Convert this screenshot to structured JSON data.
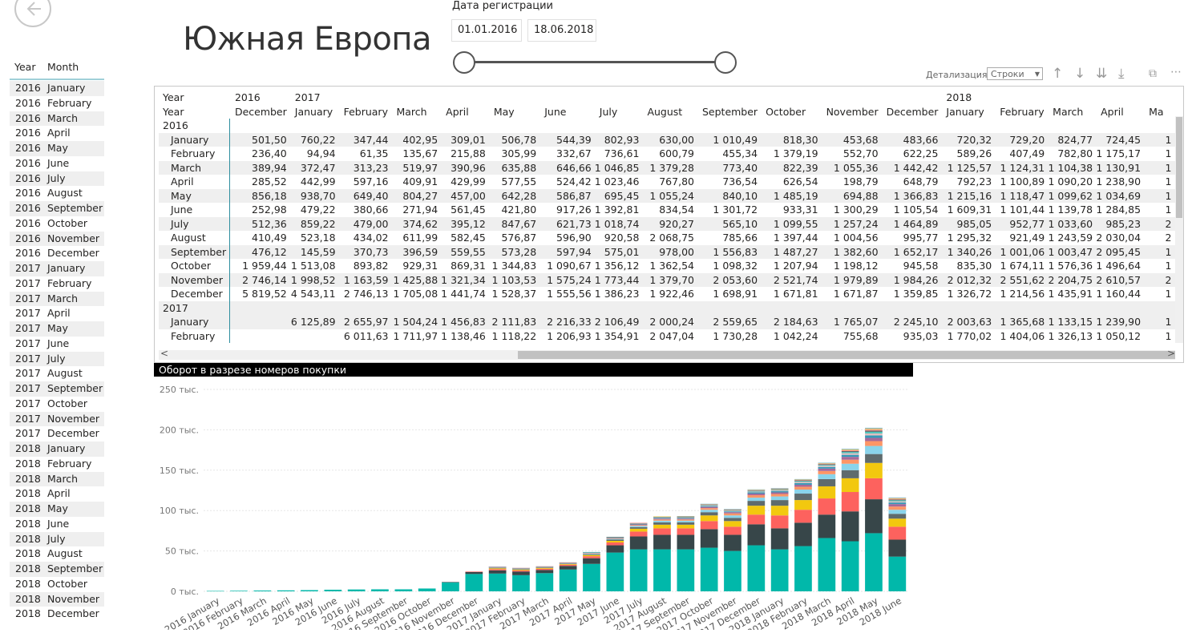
{
  "page": {
    "title": "Южная Европа"
  },
  "slicer": {
    "label": "Дата регистрации",
    "from": "01.01.2016",
    "to": "18.06.2018"
  },
  "left_list": {
    "headers": {
      "year": "Year",
      "month": "Month"
    },
    "rows": [
      [
        "2016",
        "January"
      ],
      [
        "2016",
        "February"
      ],
      [
        "2016",
        "March"
      ],
      [
        "2016",
        "April"
      ],
      [
        "2016",
        "May"
      ],
      [
        "2016",
        "June"
      ],
      [
        "2016",
        "July"
      ],
      [
        "2016",
        "August"
      ],
      [
        "2016",
        "September"
      ],
      [
        "2016",
        "October"
      ],
      [
        "2016",
        "November"
      ],
      [
        "2016",
        "December"
      ],
      [
        "2017",
        "January"
      ],
      [
        "2017",
        "February"
      ],
      [
        "2017",
        "March"
      ],
      [
        "2017",
        "April"
      ],
      [
        "2017",
        "May"
      ],
      [
        "2017",
        "June"
      ],
      [
        "2017",
        "July"
      ],
      [
        "2017",
        "August"
      ],
      [
        "2017",
        "September"
      ],
      [
        "2017",
        "October"
      ],
      [
        "2017",
        "November"
      ],
      [
        "2017",
        "December"
      ],
      [
        "2018",
        "January"
      ],
      [
        "2018",
        "February"
      ],
      [
        "2018",
        "March"
      ],
      [
        "2018",
        "April"
      ],
      [
        "2018",
        "May"
      ],
      [
        "2018",
        "June"
      ],
      [
        "2018",
        "July"
      ],
      [
        "2018",
        "August"
      ],
      [
        "2018",
        "September"
      ],
      [
        "2018",
        "October"
      ],
      [
        "2018",
        "November"
      ],
      [
        "2018",
        "December"
      ]
    ]
  },
  "toolbar": {
    "detail_label": "Детализация",
    "detail_value": "Строки"
  },
  "matrix": {
    "corner": [
      "Year",
      "Year"
    ],
    "year_headers": [
      [
        "2016",
        0
      ],
      [
        "2017",
        1
      ],
      [
        "2018",
        13
      ]
    ],
    "columns": [
      "December",
      "January",
      "February",
      "March",
      "April",
      "May",
      "June",
      "July",
      "August",
      "September",
      "October",
      "November",
      "December",
      "January",
      "February",
      "March",
      "April",
      "Ma"
    ],
    "groups": [
      {
        "year": "2016",
        "rows": [
          {
            "label": "January",
            "values": [
              "501,50",
              "760,22",
              "347,44",
              "402,95",
              "309,01",
              "506,78",
              "544,39",
              "802,93",
              "630,00",
              "1 010,49",
              "818,30",
              "453,68",
              "483,66",
              "720,32",
              "729,20",
              "824,77",
              "724,45",
              "1"
            ]
          },
          {
            "label": "February",
            "values": [
              "236,40",
              "94,94",
              "61,35",
              "135,67",
              "215,88",
              "305,99",
              "332,67",
              "736,61",
              "600,79",
              "455,34",
              "1 379,19",
              "552,70",
              "622,25",
              "589,26",
              "407,49",
              "782,80",
              "1 175,17",
              "1"
            ]
          },
          {
            "label": "March",
            "values": [
              "389,94",
              "372,47",
              "313,23",
              "519,97",
              "390,96",
              "635,88",
              "646,66",
              "1 046,85",
              "1 379,28",
              "773,40",
              "822,39",
              "1 055,36",
              "1 442,42",
              "1 125,57",
              "1 124,31",
              "1 104,38",
              "1 130,91",
              "1"
            ]
          },
          {
            "label": "April",
            "values": [
              "285,52",
              "442,99",
              "597,16",
              "409,91",
              "429,99",
              "577,55",
              "524,42",
              "1 023,46",
              "767,80",
              "736,54",
              "626,54",
              "198,79",
              "648,79",
              "792,23",
              "1 100,89",
              "1 090,20",
              "1 238,90",
              "1"
            ]
          },
          {
            "label": "May",
            "values": [
              "856,18",
              "938,70",
              "649,40",
              "804,27",
              "457,00",
              "642,28",
              "586,87",
              "695,45",
              "1 055,24",
              "840,10",
              "1 485,19",
              "694,88",
              "1 366,83",
              "1 215,16",
              "1 118,47",
              "1 099,62",
              "1 034,69",
              "1"
            ]
          },
          {
            "label": "June",
            "values": [
              "252,98",
              "479,22",
              "380,66",
              "271,94",
              "561,45",
              "421,80",
              "917,26",
              "1 392,81",
              "834,54",
              "1 301,72",
              "933,31",
              "1 300,29",
              "1 105,54",
              "1 609,31",
              "1 101,44",
              "1 139,78",
              "1 284,85",
              "1"
            ]
          },
          {
            "label": "July",
            "values": [
              "512,36",
              "859,22",
              "479,00",
              "374,62",
              "395,12",
              "847,67",
              "621,73",
              "1 018,74",
              "920,27",
              "565,10",
              "1 099,55",
              "1 257,24",
              "1 464,89",
              "985,05",
              "952,77",
              "1 033,60",
              "985,23",
              "2"
            ]
          },
          {
            "label": "August",
            "values": [
              "410,49",
              "523,18",
              "434,02",
              "611,99",
              "582,45",
              "576,87",
              "596,90",
              "920,58",
              "2 068,75",
              "785,66",
              "1 397,44",
              "1 004,56",
              "995,77",
              "1 295,32",
              "921,49",
              "1 243,59",
              "2 030,04",
              "2"
            ]
          },
          {
            "label": "September",
            "values": [
              "476,12",
              "145,59",
              "370,73",
              "396,59",
              "559,55",
              "573,28",
              "597,94",
              "575,01",
              "978,00",
              "1 556,83",
              "1 487,27",
              "1 382,60",
              "1 652,17",
              "1 340,26",
              "1 001,06",
              "1 003,47",
              "2 095,45",
              "1"
            ]
          },
          {
            "label": "October",
            "values": [
              "1 959,44",
              "1 513,08",
              "893,82",
              "929,31",
              "869,31",
              "1 344,83",
              "1 090,67",
              "1 356,12",
              "1 362,54",
              "1 098,32",
              "1 207,94",
              "1 198,12",
              "945,58",
              "835,30",
              "1 674,11",
              "1 576,36",
              "1 496,64",
              "1"
            ]
          },
          {
            "label": "November",
            "values": [
              "2 746,14",
              "1 998,52",
              "1 163,59",
              "1 425,88",
              "1 321,34",
              "1 103,53",
              "1 575,24",
              "1 773,44",
              "1 379,70",
              "2 053,60",
              "2 521,74",
              "1 979,89",
              "1 984,26",
              "2 012,32",
              "2 551,62",
              "2 204,75",
              "2 610,57",
              "2"
            ]
          },
          {
            "label": "December",
            "values": [
              "5 819,52",
              "4 543,11",
              "2 746,13",
              "1 705,08",
              "1 441,74",
              "1 528,37",
              "1 555,56",
              "1 386,23",
              "1 922,46",
              "1 698,91",
              "1 671,81",
              "1 671,87",
              "1 359,85",
              "1 326,72",
              "1 214,56",
              "1 435,91",
              "1 160,44",
              "1"
            ]
          }
        ]
      },
      {
        "year": "2017",
        "rows": [
          {
            "label": "January",
            "values": [
              "",
              "6 125,89",
              "2 655,97",
              "1 504,24",
              "1 456,83",
              "2 111,83",
              "2 216,33",
              "2 106,49",
              "2 000,24",
              "2 559,65",
              "2 184,63",
              "1 765,07",
              "2 245,10",
              "2 003,63",
              "1 365,68",
              "1 133,15",
              "1 239,90",
              "1"
            ]
          },
          {
            "label": "February",
            "values": [
              "",
              "",
              "6 011,63",
              "1 711,97",
              "1 138,46",
              "1 118,22",
              "1 206,93",
              "1 354,91",
              "2 047,04",
              "1 730,28",
              "1 042,24",
              "755,68",
              "935,03",
              "1 770,02",
              "1 404,06",
              "1 326,13",
              "1 050,12",
              "1"
            ]
          }
        ]
      }
    ]
  },
  "chart_data": {
    "type": "bar",
    "title": "Оборот в разрезе номеров покупки",
    "yticks": [
      "0 тыс.",
      "50 тыс.",
      "100 тыс.",
      "150 тыс.",
      "200 тыс.",
      "250 тыс."
    ],
    "ylim": [
      0,
      250
    ],
    "categories": [
      "2016 January",
      "2016 February",
      "2016 March",
      "2016 April",
      "2016 May",
      "2016 June",
      "2016 July",
      "2016 August",
      "2016 September",
      "2016 October",
      "2016 November",
      "2016 December",
      "2017 January",
      "2017 February",
      "2017 March",
      "2017 April",
      "2017 May",
      "2017 June",
      "2017 July",
      "2017 August",
      "2017 September",
      "2017 October",
      "2017 November",
      "2017 December",
      "2018 January",
      "2018 February",
      "2018 March",
      "2018 April",
      "2018 May",
      "2018 June"
    ],
    "colors": [
      "#01b8aa",
      "#374649",
      "#fd625e",
      "#f2c80f",
      "#5f6b6d",
      "#8ad4eb",
      "#fe9666",
      "#a66999",
      "#3599b8",
      "#dfbfbf",
      "#4ac5bb",
      "#5f6b6d",
      "#fb8281",
      "#f4d25a",
      "#7f898a",
      "#a4ddee",
      "#fdab89",
      "#b687ac",
      "#28738a",
      "#a78f8f"
    ],
    "series_values": [
      [
        0.5,
        0.7,
        1.0,
        1.2,
        1.5,
        2.0,
        2.3,
        2.5,
        2.5,
        3.5,
        11.0,
        21.5,
        22.0,
        20.0,
        22.5,
        27.0,
        34.0,
        48.0,
        52.0,
        52.0,
        52.0,
        54.0,
        50.0,
        57.0,
        52.0,
        56.0,
        66.0,
        62.0,
        72.0,
        43.0
      ],
      [
        0,
        0,
        0,
        0,
        0,
        0,
        0,
        0,
        0,
        0,
        0.5,
        2.5,
        4.0,
        4.5,
        4.0,
        4.5,
        7.0,
        9.0,
        16.0,
        18.0,
        18.0,
        23.0,
        20.0,
        26.0,
        26.0,
        29.0,
        29.0,
        37.0,
        42.0,
        21.0
      ],
      [
        0,
        0,
        0,
        0,
        0,
        0,
        0,
        0,
        0,
        0,
        0,
        0.5,
        1.5,
        1.5,
        1.5,
        1.5,
        2.5,
        3.5,
        6.0,
        8.0,
        8.0,
        10.0,
        10.0,
        12.0,
        16.0,
        16.0,
        20.0,
        24.0,
        26.0,
        16.0
      ],
      [
        0,
        0,
        0,
        0,
        0,
        0,
        0,
        0,
        0,
        0,
        0,
        0,
        1.0,
        1.0,
        1.0,
        0.8,
        1.5,
        2.0,
        3.5,
        4.5,
        4.5,
        7.0,
        7.0,
        11.0,
        12.0,
        12.0,
        15.0,
        17.0,
        19.0,
        10.0
      ],
      [
        0,
        0,
        0,
        0,
        0,
        0,
        0,
        0,
        0,
        0,
        0,
        0,
        0.7,
        0.7,
        0.7,
        0.6,
        1.0,
        1.5,
        2.0,
        3.0,
        3.0,
        4.0,
        4.0,
        6.0,
        7.0,
        8.0,
        9.0,
        10.0,
        11.0,
        6.0
      ],
      [
        0,
        0,
        0,
        0,
        0,
        0,
        0,
        0,
        0,
        0,
        0,
        0,
        0.5,
        0.5,
        0.5,
        0.5,
        0.8,
        1.0,
        1.5,
        2.0,
        2.0,
        3.0,
        3.0,
        4.0,
        4.5,
        5.0,
        6.0,
        8.0,
        10.0,
        5.0
      ],
      [
        0,
        0,
        0,
        0,
        0,
        0,
        0,
        0,
        0,
        0,
        0,
        0,
        0.4,
        0.4,
        0.4,
        0.4,
        0.6,
        0.8,
        1.0,
        1.5,
        1.5,
        2.0,
        2.5,
        3.0,
        3.0,
        3.5,
        4.0,
        5.0,
        6.0,
        4.0
      ],
      [
        0,
        0,
        0,
        0,
        0,
        0,
        0,
        0,
        0,
        0,
        0,
        0,
        0.3,
        0.3,
        0.3,
        0.3,
        0.5,
        0.6,
        0.8,
        1.0,
        1.0,
        1.5,
        1.5,
        2.0,
        2.0,
        2.5,
        3.0,
        3.5,
        4.0,
        3.0
      ],
      [
        0,
        0,
        0,
        0,
        0,
        0,
        0,
        0,
        0,
        0,
        0,
        0,
        0.2,
        0.2,
        0.2,
        0.2,
        0.3,
        0.4,
        0.6,
        0.8,
        0.8,
        1.0,
        1.0,
        1.5,
        1.5,
        2.0,
        2.0,
        2.5,
        3.0,
        2.0
      ],
      [
        0,
        0,
        0,
        0,
        0,
        0,
        0,
        0,
        0,
        0,
        0,
        0,
        0.2,
        0.2,
        0.2,
        0.2,
        0.3,
        0.3,
        0.5,
        0.6,
        0.6,
        0.8,
        0.8,
        1.0,
        1.0,
        1.5,
        1.5,
        2.0,
        2.5,
        1.5
      ],
      [
        0,
        0,
        0,
        0,
        0,
        0,
        0,
        0,
        0,
        0,
        0,
        0,
        0,
        0,
        0,
        0,
        0.2,
        0.2,
        0.4,
        0.5,
        0.5,
        0.6,
        0.6,
        0.8,
        0.8,
        1.0,
        1.0,
        1.5,
        2.0,
        1.2
      ],
      [
        0,
        0,
        0,
        0,
        0,
        0,
        0,
        0,
        0,
        0,
        0,
        0,
        0,
        0,
        0,
        0,
        0,
        0.2,
        0.3,
        0.4,
        0.4,
        0.5,
        0.5,
        0.6,
        0.6,
        0.8,
        0.8,
        1.2,
        1.5,
        1.0
      ],
      [
        0,
        0,
        0,
        0,
        0,
        0,
        0,
        0,
        0,
        0,
        0,
        0,
        0,
        0,
        0,
        0,
        0,
        0,
        0.2,
        0.3,
        0.3,
        0.4,
        0.4,
        0.5,
        0.5,
        0.6,
        0.7,
        1.0,
        1.2,
        0.8
      ],
      [
        0,
        0,
        0,
        0,
        0,
        0,
        0,
        0,
        0,
        0,
        0,
        0,
        0,
        0,
        0,
        0,
        0,
        0,
        0,
        0.2,
        0.2,
        0.3,
        0.3,
        0.4,
        0.4,
        0.5,
        0.6,
        0.8,
        1.0,
        0.7
      ],
      [
        0,
        0,
        0,
        0,
        0,
        0,
        0,
        0,
        0,
        0,
        0,
        0,
        0,
        0,
        0,
        0,
        0,
        0,
        0,
        0,
        0.2,
        0.2,
        0.2,
        0.3,
        0.3,
        0.4,
        0.5,
        0.6,
        0.8,
        0.6
      ],
      [
        0,
        0,
        0,
        0,
        0,
        0,
        0,
        0,
        0,
        0,
        0,
        0,
        0,
        0,
        0,
        0,
        0,
        0,
        0,
        0,
        0,
        0.2,
        0.2,
        0.2,
        0.3,
        0.3,
        0.4,
        0.5,
        0.6,
        0.5
      ]
    ]
  }
}
